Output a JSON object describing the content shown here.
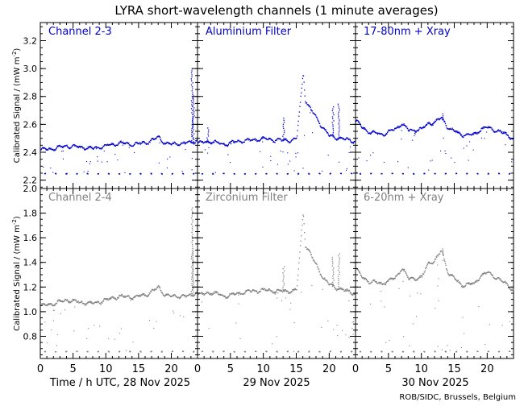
{
  "title": "LYRA short-wavelength channels (1 minute averages)",
  "credit": "ROB/SIDC, Brussels, Belgium",
  "colors": {
    "top_series": "#0000cc",
    "bottom_series": "#808080",
    "frame": "#000000"
  },
  "day_labels": [
    "Time / h UTC, 28 Nov 2025",
    "29 Nov 2025",
    "30 Nov 2025"
  ],
  "chart_data": [
    {
      "type": "scatter",
      "row": "top",
      "ylabel": "Calibrated Signal / (mW m",
      "ylabel_sup": "-2",
      "ylabel_end": ")",
      "ylim": [
        2.14,
        3.33
      ],
      "yticks": [
        2.2,
        2.4,
        2.6,
        2.8,
        3.0,
        3.2
      ],
      "xlim": [
        0,
        24
      ],
      "xticks": [
        0,
        5,
        10,
        15,
        20
      ],
      "panels": [
        {
          "name": "Channel 2-3",
          "baseline": 2.43,
          "low_band": 2.25,
          "keypoints": [
            [
              0,
              2.42
            ],
            [
              2,
              2.43
            ],
            [
              4,
              2.45
            ],
            [
              6,
              2.44
            ],
            [
              8,
              2.43
            ],
            [
              10,
              2.45
            ],
            [
              12,
              2.47
            ],
            [
              14,
              2.46
            ],
            [
              16,
              2.47
            ],
            [
              18,
              2.51
            ],
            [
              19,
              2.47
            ],
            [
              20,
              2.46
            ],
            [
              22,
              2.47
            ],
            [
              23,
              2.47
            ],
            [
              24,
              2.5
            ]
          ],
          "spikes": [
            [
              23.1,
              3.01
            ],
            [
              23.3,
              2.82
            ]
          ]
        },
        {
          "name": "Aluminium Filter",
          "baseline": 2.48,
          "low_band": 2.25,
          "keypoints": [
            [
              0,
              2.47
            ],
            [
              2,
              2.48
            ],
            [
              4,
              2.46
            ],
            [
              6,
              2.48
            ],
            [
              8,
              2.49
            ],
            [
              10,
              2.5
            ],
            [
              12,
              2.49
            ],
            [
              14,
              2.49
            ],
            [
              15,
              2.5
            ],
            [
              16,
              2.98
            ],
            [
              16.3,
              2.78
            ],
            [
              17,
              2.72
            ],
            [
              18,
              2.65
            ],
            [
              19,
              2.58
            ],
            [
              20,
              2.52
            ],
            [
              22,
              2.5
            ],
            [
              24,
              2.48
            ]
          ],
          "spikes": [
            [
              13.0,
              2.66
            ],
            [
              20.5,
              2.73
            ],
            [
              21.4,
              2.75
            ],
            [
              1.5,
              2.58
            ]
          ]
        },
        {
          "name": "17-80nm + Xray",
          "baseline": 2.55,
          "low_band": 2.25,
          "keypoints": [
            [
              0,
              2.63
            ],
            [
              1,
              2.58
            ],
            [
              2,
              2.55
            ],
            [
              4,
              2.53
            ],
            [
              6,
              2.57
            ],
            [
              7,
              2.61
            ],
            [
              8,
              2.56
            ],
            [
              10,
              2.57
            ],
            [
              11,
              2.61
            ],
            [
              12,
              2.62
            ],
            [
              13,
              2.65
            ],
            [
              14,
              2.58
            ],
            [
              16,
              2.53
            ],
            [
              18,
              2.53
            ],
            [
              19,
              2.57
            ],
            [
              20,
              2.58
            ],
            [
              22,
              2.55
            ],
            [
              24,
              2.5
            ]
          ],
          "spikes": [
            [
              13.2,
              2.68
            ]
          ]
        }
      ]
    },
    {
      "type": "scatter",
      "row": "bottom",
      "ylabel": "Calibrated Signal / (mW m",
      "ylabel_sup": "-2",
      "ylabel_end": ")",
      "ylim": [
        0.62,
        2.0
      ],
      "yticks": [
        0.8,
        1.0,
        1.2,
        1.4,
        1.6,
        1.8,
        2.0
      ],
      "xlim": [
        0,
        24
      ],
      "xticks": [
        0,
        5,
        10,
        15,
        20
      ],
      "panels": [
        {
          "name": "Channel 2-4",
          "baseline": 1.08,
          "low_band": 0.68,
          "keypoints": [
            [
              0,
              1.05
            ],
            [
              2,
              1.07
            ],
            [
              4,
              1.1
            ],
            [
              6,
              1.08
            ],
            [
              8,
              1.07
            ],
            [
              10,
              1.1
            ],
            [
              12,
              1.13
            ],
            [
              14,
              1.12
            ],
            [
              16,
              1.14
            ],
            [
              18,
              1.2
            ],
            [
              19,
              1.14
            ],
            [
              20,
              1.13
            ],
            [
              22,
              1.13
            ],
            [
              23,
              1.13
            ],
            [
              24,
              1.18
            ]
          ],
          "spikes": [
            [
              23.1,
              1.85
            ],
            [
              23.3,
              1.5
            ]
          ]
        },
        {
          "name": "Zirconium Filter",
          "baseline": 1.15,
          "low_band": 0.68,
          "keypoints": [
            [
              0,
              1.14
            ],
            [
              2,
              1.16
            ],
            [
              4,
              1.13
            ],
            [
              6,
              1.15
            ],
            [
              8,
              1.17
            ],
            [
              10,
              1.18
            ],
            [
              12,
              1.17
            ],
            [
              14,
              1.17
            ],
            [
              15,
              1.18
            ],
            [
              16,
              1.82
            ],
            [
              16.3,
              1.55
            ],
            [
              17,
              1.48
            ],
            [
              18,
              1.38
            ],
            [
              19,
              1.28
            ],
            [
              20,
              1.22
            ],
            [
              22,
              1.18
            ],
            [
              24,
              1.15
            ]
          ],
          "spikes": [
            [
              13.0,
              1.38
            ],
            [
              20.5,
              1.45
            ],
            [
              21.4,
              1.48
            ]
          ]
        },
        {
          "name": "6-20nm + Xray",
          "baseline": 1.25,
          "low_band": 0.68,
          "keypoints": [
            [
              0,
              1.35
            ],
            [
              1,
              1.28
            ],
            [
              2,
              1.25
            ],
            [
              4,
              1.23
            ],
            [
              6,
              1.28
            ],
            [
              7,
              1.36
            ],
            [
              8,
              1.27
            ],
            [
              10,
              1.28
            ],
            [
              11,
              1.4
            ],
            [
              12,
              1.42
            ],
            [
              13,
              1.5
            ],
            [
              14,
              1.32
            ],
            [
              16,
              1.22
            ],
            [
              18,
              1.23
            ],
            [
              19,
              1.3
            ],
            [
              20,
              1.32
            ],
            [
              22,
              1.26
            ],
            [
              24,
              1.18
            ]
          ],
          "spikes": [
            [
              13.2,
              1.52
            ]
          ]
        }
      ]
    }
  ]
}
